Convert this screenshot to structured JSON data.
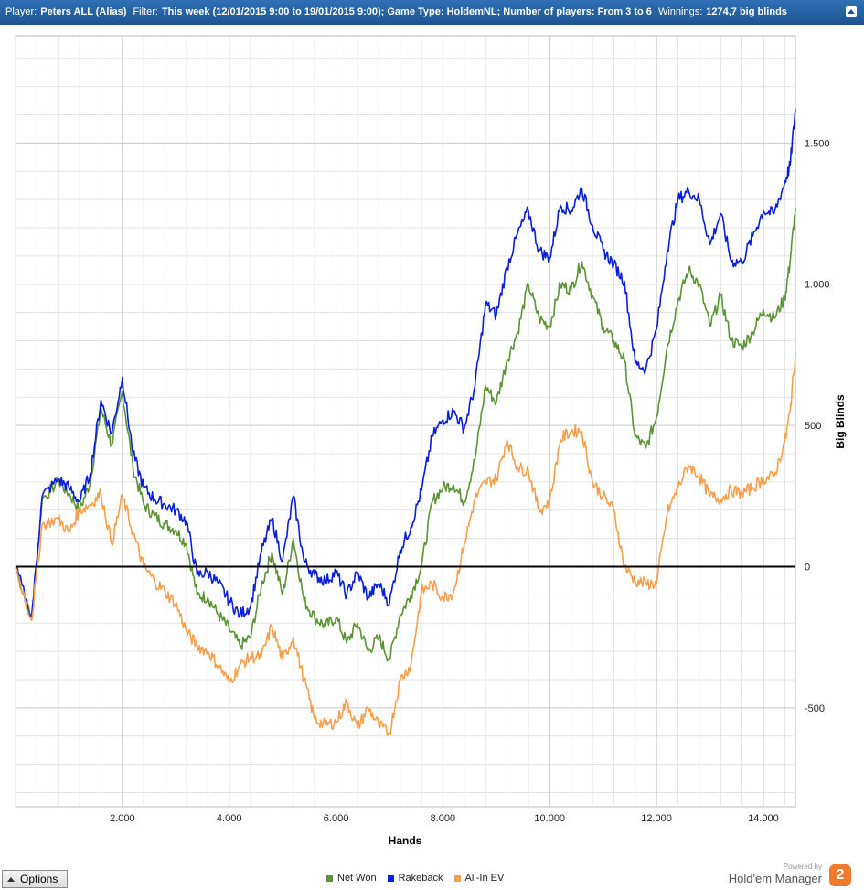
{
  "header": {
    "player_label": "Player:",
    "player_value": "Peters ALL (Alias)",
    "filter_label": "Filter:",
    "filter_value": "This week (12/01/2015 9:00 to 19/01/2015 9:00); Game Type: HoldemNL; Number of players: From 3 to 6",
    "winnings_label": "Winnings:",
    "winnings_value": "1274,7 big blinds"
  },
  "options_label": "Options",
  "brand": {
    "powered": "Powered by",
    "name": "Hold'em Manager",
    "badge": "2"
  },
  "colors": {
    "net_won": "#5b9436",
    "rakeback": "#0a1ede",
    "all_in_ev": "#f7a04c",
    "zero_line": "#000000",
    "grid": "#e3e3e3"
  },
  "chart_data": {
    "type": "line",
    "xlabel": "Hands",
    "ylabel": "Big Blinds",
    "xlim": [
      0,
      14600
    ],
    "ylim": [
      -850,
      1880
    ],
    "x_ticks": [
      2000,
      4000,
      6000,
      8000,
      10000,
      12000,
      14000
    ],
    "x_tick_labels": [
      "2.000",
      "4.000",
      "6.000",
      "8.000",
      "10.000",
      "12.000",
      "14.000"
    ],
    "y_ticks": [
      -500,
      0,
      500,
      1000,
      1500
    ],
    "y_tick_labels": [
      "-500",
      "0",
      "500",
      "1.000",
      "1.500"
    ],
    "grid": true,
    "legend_position": "bottom",
    "x": [
      0,
      300,
      500,
      800,
      1000,
      1200,
      1400,
      1600,
      1800,
      2000,
      2200,
      2400,
      2600,
      2800,
      3000,
      3200,
      3400,
      3600,
      3800,
      4000,
      4200,
      4400,
      4600,
      4800,
      5000,
      5200,
      5400,
      5600,
      5800,
      6000,
      6200,
      6400,
      6600,
      6800,
      7000,
      7200,
      7400,
      7600,
      7800,
      8000,
      8200,
      8400,
      8600,
      8800,
      9000,
      9200,
      9400,
      9600,
      9800,
      10000,
      10200,
      10400,
      10600,
      10800,
      11000,
      11200,
      11400,
      11600,
      11800,
      12000,
      12200,
      12400,
      12600,
      12800,
      13000,
      13200,
      13400,
      13600,
      13800,
      14000,
      14200,
      14400,
      14500,
      14600
    ],
    "series": [
      {
        "name": "Net Won",
        "key": "net_won",
        "values": [
          0,
          -190,
          240,
          300,
          260,
          200,
          300,
          560,
          430,
          620,
          350,
          220,
          180,
          150,
          130,
          80,
          -100,
          -110,
          -170,
          -220,
          -280,
          -250,
          -70,
          50,
          -100,
          100,
          -120,
          -180,
          -210,
          -180,
          -270,
          -200,
          -300,
          -250,
          -330,
          -170,
          -100,
          0,
          230,
          280,
          290,
          230,
          380,
          640,
          580,
          730,
          830,
          1000,
          880,
          850,
          1000,
          980,
          1080,
          960,
          850,
          800,
          730,
          460,
          420,
          530,
          780,
          940,
          1050,
          1000,
          850,
          960,
          800,
          780,
          830,
          910,
          880,
          950,
          1080,
          1270
        ]
      },
      {
        "name": "Rakeback",
        "key": "rakeback",
        "values": [
          0,
          -180,
          250,
          310,
          280,
          230,
          330,
          590,
          470,
          670,
          400,
          280,
          240,
          220,
          200,
          160,
          -30,
          -20,
          -60,
          -120,
          -170,
          -140,
          50,
          170,
          20,
          250,
          20,
          -30,
          -50,
          -20,
          -100,
          -20,
          -110,
          -60,
          -130,
          60,
          140,
          270,
          460,
          520,
          550,
          490,
          640,
          930,
          890,
          1060,
          1180,
          1260,
          1120,
          1090,
          1280,
          1260,
          1340,
          1210,
          1120,
          1070,
          1010,
          720,
          700,
          840,
          1120,
          1300,
          1330,
          1300,
          1140,
          1250,
          1080,
          1080,
          1170,
          1260,
          1250,
          1360,
          1420,
          1620
        ]
      },
      {
        "name": "All-In EV",
        "key": "all_in_ev",
        "values": [
          0,
          -190,
          150,
          170,
          120,
          200,
          220,
          260,
          80,
          250,
          120,
          0,
          -50,
          -90,
          -130,
          -230,
          -280,
          -300,
          -350,
          -410,
          -350,
          -320,
          -320,
          -210,
          -330,
          -250,
          -400,
          -540,
          -560,
          -550,
          -480,
          -570,
          -500,
          -560,
          -590,
          -400,
          -350,
          -90,
          -60,
          -110,
          -90,
          80,
          240,
          300,
          310,
          450,
          350,
          340,
          200,
          230,
          450,
          480,
          480,
          300,
          250,
          200,
          0,
          -50,
          -60,
          -60,
          190,
          280,
          360,
          320,
          250,
          240,
          270,
          260,
          280,
          310,
          320,
          440,
          550,
          760
        ]
      }
    ]
  }
}
